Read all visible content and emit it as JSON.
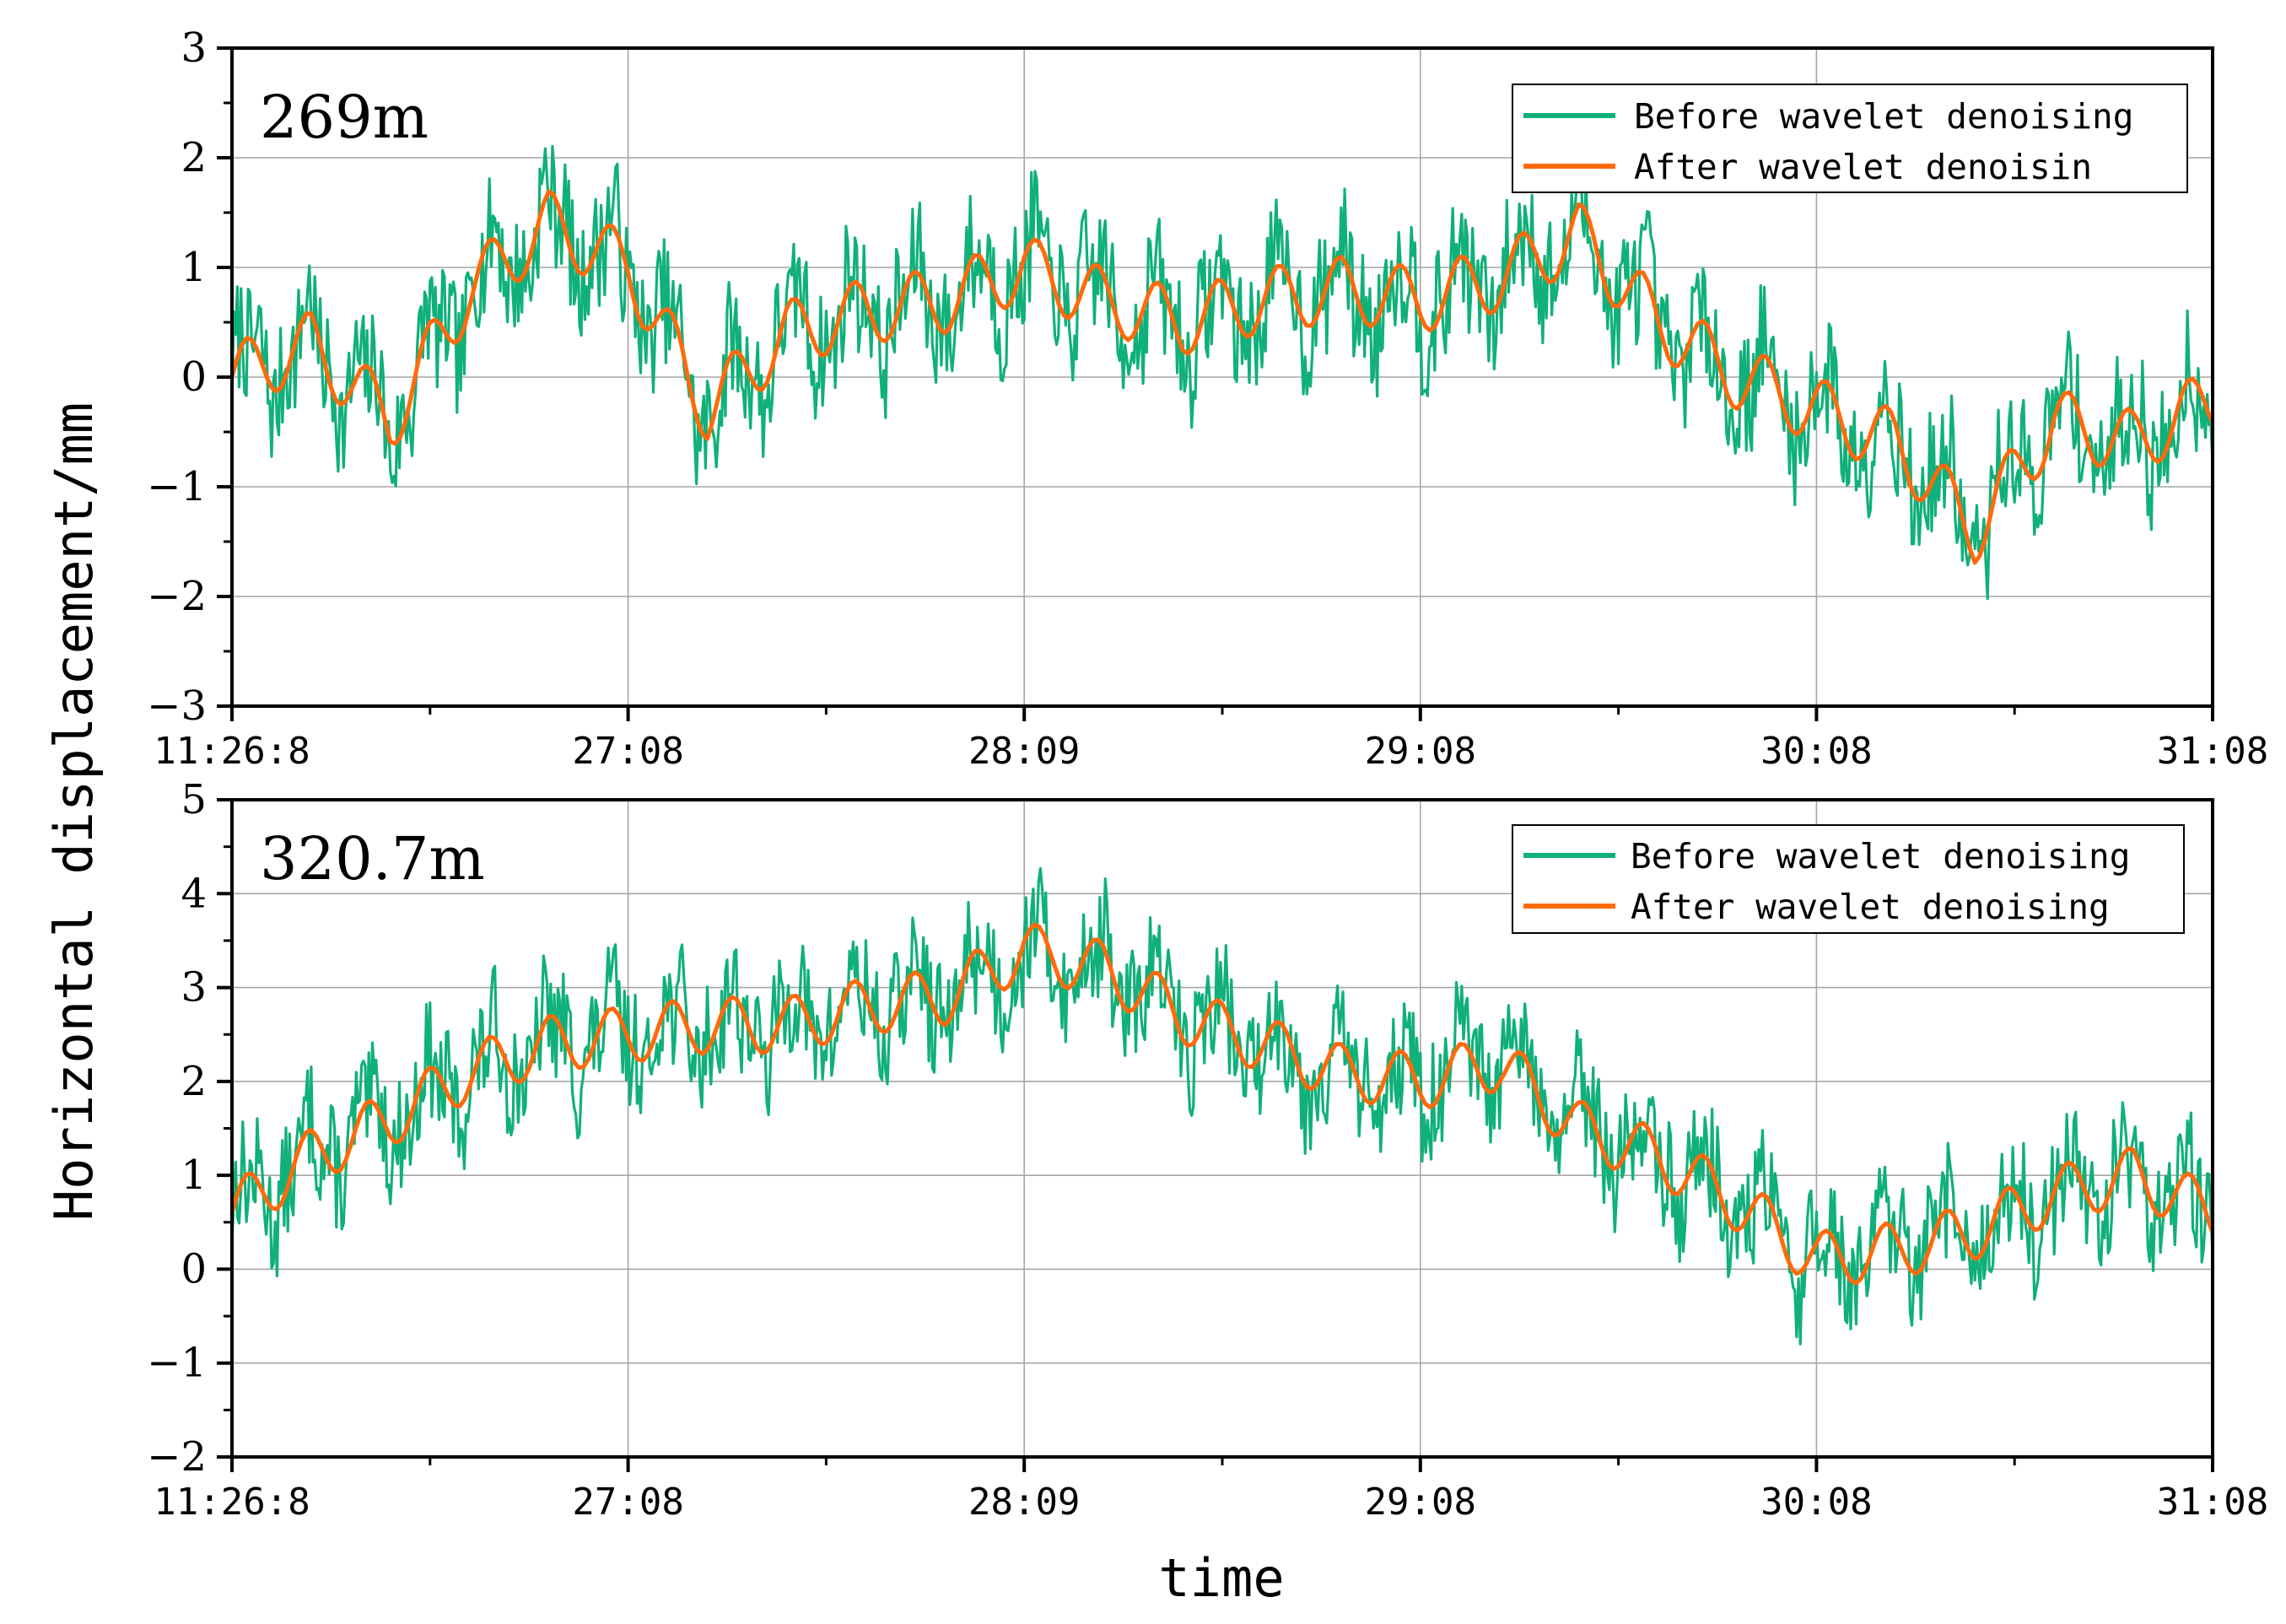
{
  "colors": {
    "before": "#10b07a",
    "after": "#ff6a0b",
    "grid": "#a6a6a6"
  },
  "ylabel": "Horizontal displacement/mm",
  "xlabel": "time",
  "chart_data": [
    {
      "type": "line",
      "title": "269m",
      "xlabel": "time",
      "ylabel": "Horizontal displacement/mm",
      "x_tick_labels": [
        "11:26:8",
        "27:08",
        "28:09",
        "29:08",
        "30:08",
        "31:08"
      ],
      "y_ticks": [
        3,
        2,
        1,
        0,
        -1,
        -2,
        -3
      ],
      "y_tick_labels": [
        "3",
        "2",
        "1",
        "0",
        "−1",
        "−2",
        "−3"
      ],
      "ylim": [
        -3,
        3
      ],
      "xlim": [
        0,
        100
      ],
      "legend": {
        "position": "top-right",
        "before": "Before wavelet denoising",
        "after": "After wavelet denoisin"
      },
      "series": [
        {
          "name": "Before wavelet denoising",
          "noise_amplitude": 0.55,
          "seed": 7
        },
        {
          "name": "After wavelet denoisin",
          "x": [
            0,
            4,
            8,
            12,
            16,
            20,
            24,
            28,
            32,
            36,
            40,
            44,
            48,
            52,
            56,
            60,
            64,
            68,
            72,
            76,
            80,
            84,
            88,
            92,
            96,
            100
          ],
          "values": [
            0.0,
            0.3,
            -0.4,
            0.8,
            1.4,
            1.0,
            -0.3,
            0.4,
            0.6,
            0.7,
            1.0,
            0.7,
            0.5,
            0.7,
            0.8,
            0.7,
            0.9,
            1.3,
            0.5,
            0.0,
            -0.3,
            -0.6,
            -1.4,
            -0.4,
            -0.6,
            -0.2
          ]
        }
      ]
    },
    {
      "type": "line",
      "title": "320.7m",
      "xlabel": "time",
      "ylabel": "Horizontal displacement/mm",
      "x_tick_labels": [
        "11:26:8",
        "27:08",
        "28:09",
        "29:08",
        "30:08",
        "31:08"
      ],
      "y_ticks": [
        5,
        4,
        3,
        2,
        1,
        0,
        -1,
        -2
      ],
      "y_tick_labels": [
        "5",
        "4",
        "3",
        "2",
        "1",
        "0",
        "−1",
        "−2"
      ],
      "ylim": [
        -2,
        5
      ],
      "xlim": [
        0,
        100
      ],
      "legend": {
        "position": "top-right",
        "before": "Before wavelet denoising",
        "after": "After wavelet denoising"
      },
      "series": [
        {
          "name": "Before wavelet denoising",
          "noise_amplitude": 0.6,
          "seed": 13
        },
        {
          "name": "After wavelet denoising",
          "x": [
            0,
            4,
            8,
            12,
            16,
            20,
            24,
            28,
            32,
            36,
            40,
            44,
            48,
            52,
            56,
            60,
            64,
            68,
            72,
            76,
            80,
            84,
            88,
            92,
            96,
            100
          ],
          "values": [
            0.6,
            1.2,
            1.6,
            2.1,
            2.4,
            2.5,
            2.6,
            2.6,
            2.8,
            2.9,
            3.4,
            3.2,
            2.7,
            2.4,
            2.1,
            2.0,
            2.2,
            1.5,
            1.2,
            0.7,
            0.1,
            0.2,
            0.4,
            0.8,
            1.0,
            0.6
          ]
        }
      ]
    }
  ]
}
